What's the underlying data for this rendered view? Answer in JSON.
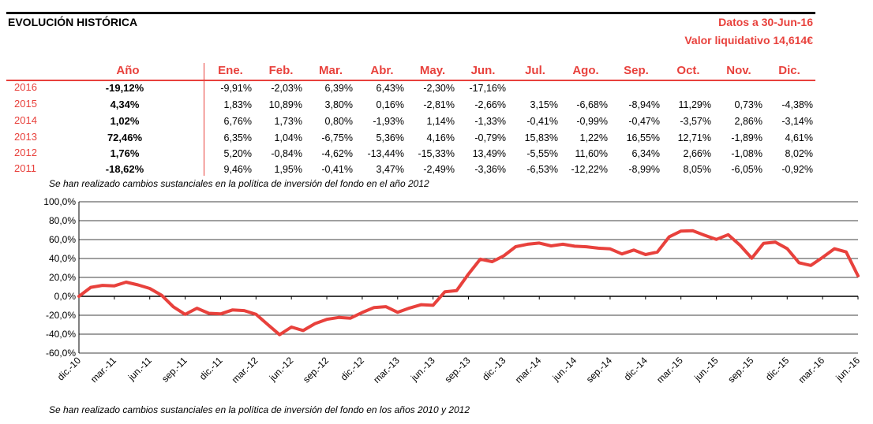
{
  "header": {
    "title": "EVOLUCIÓN HISTÓRICA",
    "date_label": "Datos a 30-Jun-16",
    "nav_label": "Valor liquidativo 14,614€"
  },
  "table": {
    "columns": [
      "Año",
      "Ene.",
      "Feb.",
      "Mar.",
      "Abr.",
      "May.",
      "Jun.",
      "Jul.",
      "Ago.",
      "Sep.",
      "Oct.",
      "Nov.",
      "Dic."
    ],
    "rows": [
      {
        "year": "2016",
        "annual": "-19,12%",
        "months": [
          "-9,91%",
          "-2,03%",
          "6,39%",
          "6,43%",
          "-2,30%",
          "-17,16%",
          "",
          "",
          "",
          "",
          "",
          ""
        ]
      },
      {
        "year": "2015",
        "annual": "4,34%",
        "months": [
          "1,83%",
          "10,89%",
          "3,80%",
          "0,16%",
          "-2,81%",
          "-2,66%",
          "3,15%",
          "-6,68%",
          "-8,94%",
          "11,29%",
          "0,73%",
          "-4,38%"
        ]
      },
      {
        "year": "2014",
        "annual": "1,02%",
        "months": [
          "6,76%",
          "1,73%",
          "0,80%",
          "-1,93%",
          "1,14%",
          "-1,33%",
          "-0,41%",
          "-0,99%",
          "-0,47%",
          "-3,57%",
          "2,86%",
          "-3,14%"
        ]
      },
      {
        "year": "2013",
        "annual": "72,46%",
        "months": [
          "6,35%",
          "1,04%",
          "-6,75%",
          "5,36%",
          "4,16%",
          "-0,79%",
          "15,83%",
          "1,22%",
          "16,55%",
          "12,71%",
          "-1,89%",
          "4,61%"
        ]
      },
      {
        "year": "2012",
        "annual": "1,76%",
        "months": [
          "5,20%",
          "-0,84%",
          "-4,62%",
          "-13,44%",
          "-15,33%",
          "13,49%",
          "-5,55%",
          "11,60%",
          "6,34%",
          "2,66%",
          "-1,08%",
          "8,02%"
        ]
      },
      {
        "year": "2011",
        "annual": "-18,62%",
        "months": [
          "9,46%",
          "1,95%",
          "-0,41%",
          "3,47%",
          "-2,49%",
          "-3,36%",
          "-6,53%",
          "-12,22%",
          "-8,99%",
          "8,05%",
          "-6,05%",
          "-0,92%"
        ]
      }
    ]
  },
  "notes": {
    "policy_note_top": "Se han realizado cambios sustanciales en la política de inversión del fondo en el año 2012",
    "policy_note_bottom": "Se han realizado cambios sustanciales en la política de inversión del fondo en los años 2010 y 2012"
  },
  "colors": {
    "accent": "#e8413c",
    "line": "#e8413c",
    "grid": "#000000"
  },
  "chart_data": {
    "type": "line",
    "title": "",
    "xlabel": "",
    "ylabel": "",
    "ylim": [
      -60,
      100
    ],
    "y_ticks": [
      "100,0%",
      "80,0%",
      "60,0%",
      "40,0%",
      "20,0%",
      "0,0%",
      "-20,0%",
      "-40,0%",
      "-60,0%"
    ],
    "x_ticks": [
      "dic.-10",
      "mar.-11",
      "jun.-11",
      "sep.-11",
      "dic.-11",
      "mar.-12",
      "jun.-12",
      "sep.-12",
      "dic.-12",
      "mar.-13",
      "jun.-13",
      "sep.-13",
      "dic.-13",
      "mar.-14",
      "jun.-14",
      "sep.-14",
      "dic.-14",
      "mar.-15",
      "jun.-15",
      "sep.-15",
      "dic.-15",
      "mar.-16",
      "jun.-16"
    ],
    "grid": true,
    "legend": "none",
    "series": [
      {
        "x": [
          "dic.-10",
          "ene.-11",
          "feb.-11",
          "mar.-11",
          "abr.-11",
          "may.-11",
          "jun.-11",
          "jul.-11",
          "ago.-11",
          "sep.-11",
          "oct.-11",
          "nov.-11",
          "dic.-11",
          "ene.-12",
          "feb.-12",
          "mar.-12",
          "abr.-12",
          "may.-12",
          "jun.-12",
          "jul.-12",
          "ago.-12",
          "sep.-12",
          "oct.-12",
          "nov.-12",
          "dic.-12",
          "ene.-13",
          "feb.-13",
          "mar.-13",
          "abr.-13",
          "may.-13",
          "jun.-13",
          "jul.-13",
          "ago.-13",
          "sep.-13",
          "oct.-13",
          "nov.-13",
          "dic.-13",
          "ene.-14",
          "feb.-14",
          "mar.-14",
          "abr.-14",
          "may.-14",
          "jun.-14",
          "jul.-14",
          "ago.-14",
          "sep.-14",
          "oct.-14",
          "nov.-14",
          "dic.-14",
          "ene.-15",
          "feb.-15",
          "mar.-15",
          "abr.-15",
          "may.-15",
          "jun.-15",
          "jul.-15",
          "ago.-15",
          "sep.-15",
          "oct.-15",
          "nov.-15",
          "dic.-15",
          "ene.-16",
          "feb.-16",
          "mar.-16",
          "abr.-16",
          "may.-16",
          "jun.-16"
        ],
        "values": [
          0,
          9.5,
          11.6,
          11.1,
          15,
          12.1,
          8.3,
          1.2,
          -11.1,
          -19.1,
          -12.6,
          -17.9,
          -18.6,
          -14.4,
          -15.1,
          -19,
          -29.9,
          -40.6,
          -32.5,
          -36.2,
          -28.8,
          -24.3,
          -22.3,
          -23.1,
          -17.1,
          -11.8,
          -10.9,
          -16.9,
          -12.4,
          -8.8,
          -9.5,
          4.8,
          6.1,
          23.6,
          39.3,
          36.6,
          42.9,
          52.5,
          55.1,
          56.3,
          53.3,
          55.1,
          53,
          52.4,
          50.9,
          50.2,
          44.8,
          48.9,
          44.2,
          46.8,
          62.8,
          69,
          69.3,
          64.6,
          60.2,
          65.2,
          54.1,
          40.3,
          56.1,
          57.3,
          50.4,
          35.5,
          32.7,
          41.2,
          50.3,
          46.9,
          21.7
        ]
      }
    ]
  }
}
